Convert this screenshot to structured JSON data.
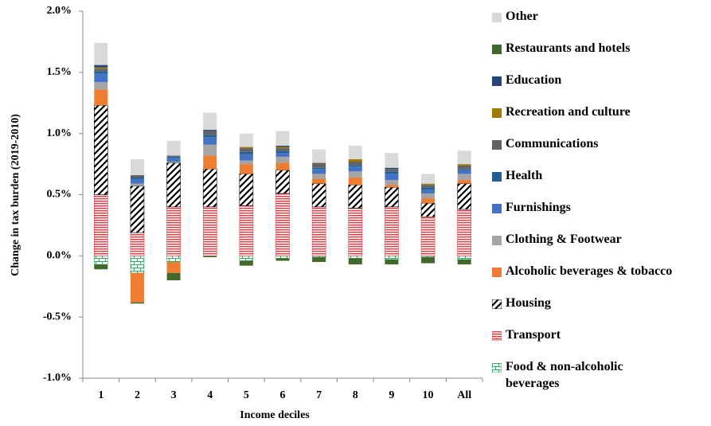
{
  "chart_data": {
    "type": "stacked_bar",
    "xlabel": "Income deciles",
    "ylabel": "Change in tax burden (2019-2010)",
    "categories": [
      "1",
      "2",
      "3",
      "4",
      "5",
      "6",
      "7",
      "8",
      "9",
      "10",
      "All"
    ],
    "ylim": [
      -1.0,
      2.0
    ],
    "yticks": [
      {
        "value": -1.0,
        "label": "-1.0%"
      },
      {
        "value": -0.5,
        "label": "-0.5%"
      },
      {
        "value": 0.0,
        "label": "0.0%"
      },
      {
        "value": 0.5,
        "label": "0.5%"
      },
      {
        "value": 1.0,
        "label": "1.0%"
      },
      {
        "value": 1.5,
        "label": "1.5%"
      },
      {
        "value": 2.0,
        "label": "2.0%"
      }
    ],
    "legend": "right",
    "series": [
      {
        "name": "Food & non-alcoholic beverages",
        "color": "#3aa66a",
        "pattern": "bricks",
        "values": [
          -0.07,
          -0.14,
          -0.05,
          0.0,
          -0.04,
          -0.02,
          -0.01,
          -0.02,
          -0.03,
          -0.01,
          -0.03
        ]
      },
      {
        "name": "Transport",
        "color": "#e8383d",
        "pattern": "hlines",
        "values": [
          0.5,
          0.19,
          0.4,
          0.4,
          0.41,
          0.51,
          0.4,
          0.39,
          0.4,
          0.32,
          0.38
        ]
      },
      {
        "name": "Housing",
        "color": "#000000",
        "pattern": "diagonal",
        "values": [
          0.73,
          0.38,
          0.36,
          0.31,
          0.26,
          0.19,
          0.19,
          0.19,
          0.16,
          0.11,
          0.21
        ]
      },
      {
        "name": "Alcoholic beverages & tobacco",
        "color": "#ed7d31",
        "values": [
          0.13,
          -0.24,
          -0.09,
          0.11,
          0.08,
          0.06,
          0.04,
          0.06,
          0.02,
          0.04,
          0.03
        ]
      },
      {
        "name": "Clothing & Footwear",
        "color": "#a5a5a5",
        "values": [
          0.06,
          0.02,
          0.01,
          0.09,
          0.03,
          0.05,
          0.04,
          0.05,
          0.04,
          0.04,
          0.05
        ]
      },
      {
        "name": "Furnishings",
        "color": "#4472c4",
        "values": [
          0.07,
          0.04,
          0.03,
          0.06,
          0.05,
          0.03,
          0.04,
          0.04,
          0.05,
          0.03,
          0.03
        ]
      },
      {
        "name": "Health",
        "color": "#255e91",
        "values": [
          0.02,
          0.01,
          0.01,
          0.02,
          0.02,
          0.02,
          0.01,
          0.01,
          0.02,
          0.02,
          0.01
        ]
      },
      {
        "name": "Communications",
        "color": "#636363",
        "values": [
          0.02,
          0.02,
          0.01,
          0.03,
          0.03,
          0.02,
          0.04,
          0.03,
          0.02,
          0.02,
          0.03
        ]
      },
      {
        "name": "Recreation and culture",
        "color": "#9e7b00",
        "values": [
          0.01,
          0.0,
          0.0,
          0.0,
          0.01,
          0.01,
          0.0,
          0.02,
          0.0,
          0.01,
          0.01
        ]
      },
      {
        "name": "Education",
        "color": "#264478",
        "values": [
          0.02,
          0.0,
          0.0,
          0.01,
          0.0,
          0.01,
          0.0,
          0.0,
          0.01,
          0.0,
          0.0
        ]
      },
      {
        "name": "Restaurants and hotels",
        "color": "#43682b",
        "values": [
          -0.04,
          -0.01,
          -0.06,
          -0.01,
          -0.04,
          -0.02,
          -0.04,
          -0.05,
          -0.04,
          -0.05,
          -0.04
        ]
      },
      {
        "name": "Other",
        "color": "#d9d9d9",
        "values": [
          0.18,
          0.13,
          0.12,
          0.14,
          0.11,
          0.12,
          0.11,
          0.11,
          0.12,
          0.08,
          0.11
        ]
      }
    ]
  }
}
